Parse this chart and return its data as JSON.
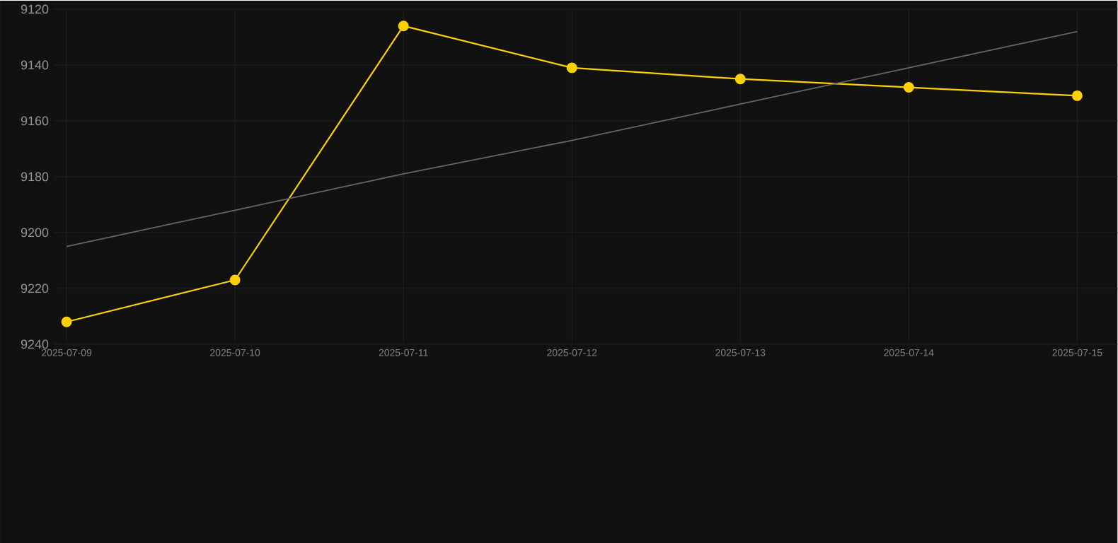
{
  "chart_data": {
    "type": "line",
    "categories": [
      "2025-07-09",
      "2025-07-10",
      "2025-07-11",
      "2025-07-12",
      "2025-07-13",
      "2025-07-14",
      "2025-07-15"
    ],
    "series": [
      {
        "color": "#ffd000",
        "values": [
          9232,
          9217,
          9126,
          9141,
          9145,
          9148,
          9151
        ]
      },
      {
        "type": "line",
        "color": "#666666",
        "marker": "none",
        "values": [
          9205,
          9192,
          9179,
          9167,
          9154,
          9141,
          9128
        ]
      }
    ],
    "ylim": [
      9240,
      9120
    ],
    "yticks": [
      9120,
      9140,
      9160,
      9180,
      9200,
      9220,
      9240
    ],
    "grid": true,
    "marker": "circle"
  }
}
